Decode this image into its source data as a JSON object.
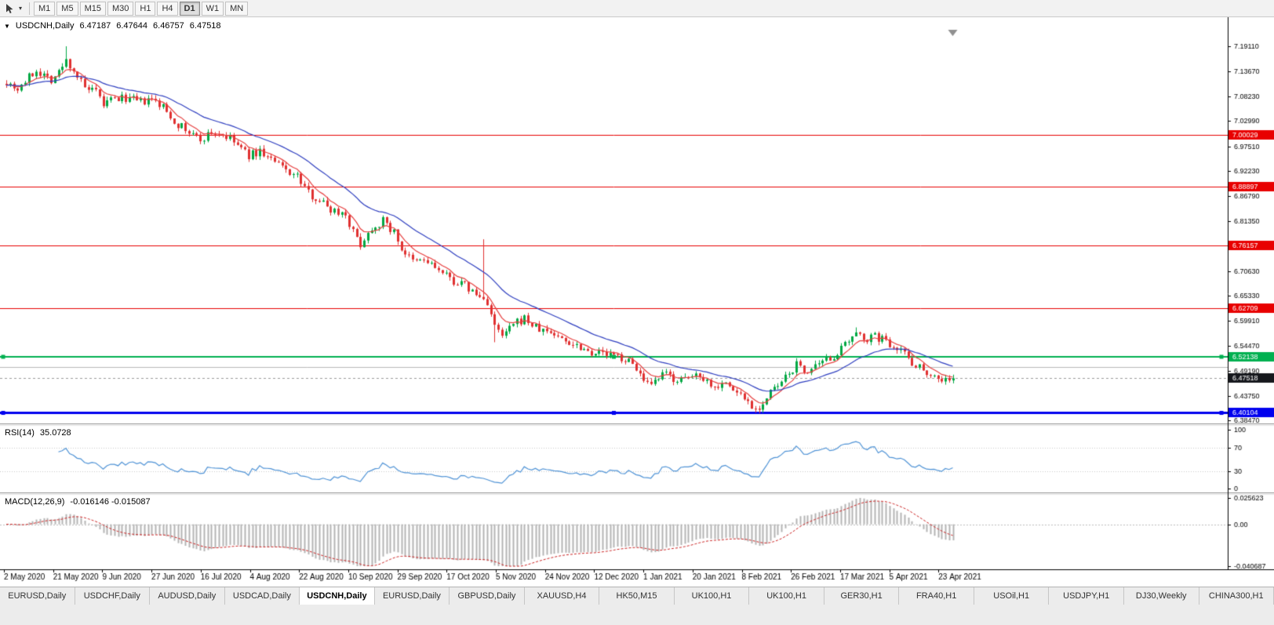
{
  "icons": {
    "collapse_triangle": "▼",
    "dropdown_caret": "▾"
  },
  "toolbar": {
    "timeframes": [
      "M1",
      "M5",
      "M15",
      "M30",
      "H1",
      "H4",
      "D1",
      "W1",
      "MN"
    ],
    "active_timeframe": "D1"
  },
  "chart_header": {
    "symbol_title": "USDCNH,Daily",
    "open": "6.47187",
    "high": "6.47644",
    "low": "6.46757",
    "close": "6.47518"
  },
  "indicators": {
    "rsi_label": "RSI(14)",
    "rsi_value": "35.0728",
    "macd_label": "MACD(12,26,9)",
    "macd_values": "-0.016146 -0.015087"
  },
  "tabs": {
    "items": [
      "EURUSD,Daily",
      "USDCHF,Daily",
      "AUDUSD,Daily",
      "USDCAD,Daily",
      "USDCNH,Daily",
      "EURUSD,Daily",
      "GBPUSD,Daily",
      "XAUUSD,H4",
      "HK50,M15",
      "UK100,H1",
      "UK100,H1",
      "GER30,H1",
      "FRA40,H1",
      "USOil,H1",
      "USDJPY,H1",
      "DJ30,Weekly",
      "CHINA300,H1"
    ],
    "active": "USDCNH,Daily",
    "active_index": 4
  },
  "chart_data": {
    "type": "candlestick",
    "symbol": "USDCNH",
    "period": "Daily",
    "colors": {
      "bull": "#00a843",
      "bear": "#e03030",
      "background": "#ffffff",
      "axis_text": "#000000",
      "fast_ma": "#e74040",
      "slow_ma": "#2f3fc0",
      "current_line": "#9a9a9a"
    },
    "y_axis": {
      "ticks": [
        "7.19110",
        "7.13670",
        "7.08230",
        "7.02990",
        "6.97510",
        "6.92230",
        "6.86790",
        "6.81350",
        "6.70630",
        "6.65330",
        "6.59910",
        "6.54470",
        "6.49190",
        "6.43750",
        "6.38470"
      ]
    },
    "x_axis": {
      "dates": [
        "2 May 2020",
        "21 May 2020",
        "9 Jun 2020",
        "27 Jun 2020",
        "16 Jul 2020",
        "4 Aug 2020",
        "22 Aug 2020",
        "10 Sep 2020",
        "29 Sep 2020",
        "17 Oct 2020",
        "5 Nov 2020",
        "24 Nov 2020",
        "12 Dec 2020",
        "1 Jan 2021",
        "20 Jan 2021",
        "8 Feb 2021",
        "26 Feb 2021",
        "17 Mar 2021",
        "5 Apr 2021",
        "23 Apr 2021"
      ]
    },
    "levels": [
      {
        "price": 7.00029,
        "label": "7.00029",
        "color": "#e80000",
        "line_width": 1
      },
      {
        "price": 6.88897,
        "label": "6.88897",
        "color": "#e80000",
        "line_width": 1
      },
      {
        "price": 6.76157,
        "label": "6.76157",
        "color": "#e80000",
        "line_width": 1
      },
      {
        "price": 6.62709,
        "label": "6.62709",
        "color": "#e80000",
        "line_width": 1
      },
      {
        "price": 6.52138,
        "label": "6.52138",
        "color": "#00b050",
        "line_width": 2,
        "handles": true
      },
      {
        "price": 6.40104,
        "label": "6.40104",
        "color": "#0000ee",
        "line_width": 3,
        "handles": true
      },
      {
        "price": 6.499,
        "label": null,
        "color": "#b8b8b8",
        "line_width": 1
      }
    ],
    "current_price": {
      "value": 6.47518,
      "label": "6.47518",
      "badge_color": "#16181d"
    },
    "candles": {
      "count": 255,
      "seed": 7,
      "body_noise": 0.018,
      "wick_noise": 0.008,
      "anchors": [
        [
          0,
          7.115
        ],
        [
          3,
          7.1
        ],
        [
          8,
          7.14
        ],
        [
          12,
          7.12
        ],
        [
          14,
          7.135
        ],
        [
          16,
          7.16
        ],
        [
          18,
          7.14
        ],
        [
          21,
          7.1
        ],
        [
          24,
          7.09
        ],
        [
          26,
          7.065
        ],
        [
          28,
          7.075
        ],
        [
          32,
          7.08
        ],
        [
          36,
          7.07
        ],
        [
          39,
          7.075
        ],
        [
          42,
          7.06
        ],
        [
          45,
          7.03
        ],
        [
          48,
          7.01
        ],
        [
          52,
          6.99
        ],
        [
          55,
          7.005
        ],
        [
          58,
          7.0
        ],
        [
          61,
          6.985
        ],
        [
          65,
          6.955
        ],
        [
          68,
          6.965
        ],
        [
          72,
          6.94
        ],
        [
          76,
          6.92
        ],
        [
          78,
          6.91
        ],
        [
          81,
          6.875
        ],
        [
          84,
          6.86
        ],
        [
          87,
          6.84
        ],
        [
          91,
          6.83
        ],
        [
          93,
          6.79
        ],
        [
          95,
          6.765
        ],
        [
          98,
          6.8
        ],
        [
          101,
          6.815
        ],
        [
          104,
          6.79
        ],
        [
          106,
          6.755
        ],
        [
          109,
          6.725
        ],
        [
          112,
          6.73
        ],
        [
          115,
          6.715
        ],
        [
          117,
          6.7
        ],
        [
          120,
          6.685
        ],
        [
          123,
          6.675
        ],
        [
          126,
          6.655
        ],
        [
          129,
          6.64
        ],
        [
          131,
          6.585
        ],
        [
          133,
          6.565
        ],
        [
          136,
          6.59
        ],
        [
          139,
          6.605
        ],
        [
          141,
          6.59
        ],
        [
          143,
          6.58
        ],
        [
          146,
          6.575
        ],
        [
          149,
          6.56
        ],
        [
          152,
          6.55
        ],
        [
          154,
          6.545
        ],
        [
          156,
          6.535
        ],
        [
          159,
          6.53
        ],
        [
          162,
          6.525
        ],
        [
          165,
          6.52
        ],
        [
          167,
          6.51
        ],
        [
          169,
          6.5
        ],
        [
          171,
          6.465
        ],
        [
          173,
          6.455
        ],
        [
          175,
          6.475
        ],
        [
          177,
          6.485
        ],
        [
          179,
          6.475
        ],
        [
          182,
          6.47
        ],
        [
          184,
          6.48
        ],
        [
          186,
          6.485
        ],
        [
          188,
          6.47
        ],
        [
          190,
          6.455
        ],
        [
          192,
          6.47
        ],
        [
          195,
          6.45
        ],
        [
          197,
          6.44
        ],
        [
          199,
          6.425
        ],
        [
          201,
          6.41
        ],
        [
          203,
          6.42
        ],
        [
          205,
          6.445
        ],
        [
          208,
          6.465
        ],
        [
          210,
          6.485
        ],
        [
          212,
          6.505
        ],
        [
          214,
          6.49
        ],
        [
          216,
          6.495
        ],
        [
          218,
          6.5
        ],
        [
          221,
          6.52
        ],
        [
          223,
          6.53
        ],
        [
          225,
          6.545
        ],
        [
          227,
          6.56
        ],
        [
          229,
          6.572
        ],
        [
          231,
          6.56
        ],
        [
          233,
          6.565
        ],
        [
          235,
          6.56
        ],
        [
          237,
          6.55
        ],
        [
          239,
          6.545
        ],
        [
          241,
          6.53
        ],
        [
          243,
          6.51
        ],
        [
          245,
          6.5
        ],
        [
          247,
          6.49
        ],
        [
          249,
          6.48
        ],
        [
          251,
          6.472
        ],
        [
          254,
          6.475
        ]
      ],
      "spikes": [
        {
          "i": 16,
          "high": 7.1911
        },
        {
          "i": 128,
          "high": 6.775
        },
        {
          "i": 131,
          "low": 6.553
        },
        {
          "i": 201,
          "low": 6.4011
        },
        {
          "i": 228,
          "high": 6.585
        }
      ]
    },
    "moving_averages": [
      {
        "name": "fast-ma",
        "period": 7,
        "color": "#e74040"
      },
      {
        "name": "slow-ma",
        "period": 24,
        "color": "#2f3fc0"
      }
    ],
    "rsi": {
      "period": 14,
      "levels": [
        100,
        70,
        30,
        0
      ],
      "line_color": "#4f93d6",
      "last_value": 35.0728
    },
    "macd": {
      "fast": 12,
      "slow": 26,
      "signal": 9,
      "axis_labels": [
        "0.025623",
        "0.00",
        "-0.040687"
      ],
      "axis_max": 0.025623,
      "axis_min": -0.040687,
      "histogram_color": "#b4b4b4",
      "signal_color": "#cc2222"
    }
  }
}
